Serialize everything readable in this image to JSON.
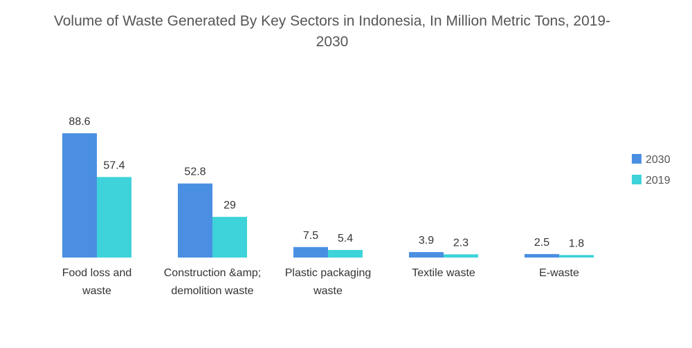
{
  "chart_data": {
    "type": "bar",
    "title": "Volume of Waste Generated By Key Sectors in Indonesia, In Million Metric Tons, 2019-2030",
    "categories": [
      [
        "Food loss and",
        "waste"
      ],
      [
        "Construction &amp;",
        "demolition waste"
      ],
      [
        "Plastic packaging",
        "waste"
      ],
      [
        "Textile waste"
      ],
      [
        "E-waste"
      ]
    ],
    "series": [
      {
        "name": "2030",
        "color": "#4a8fe2",
        "values": [
          88.6,
          52.8,
          7.5,
          3.9,
          2.5
        ]
      },
      {
        "name": "2019",
        "color": "#3ed3da",
        "values": [
          57.4,
          29,
          5.4,
          2.3,
          1.8
        ]
      }
    ],
    "ylim": [
      0,
      88.6
    ],
    "grid": false,
    "legend_position": "right"
  }
}
